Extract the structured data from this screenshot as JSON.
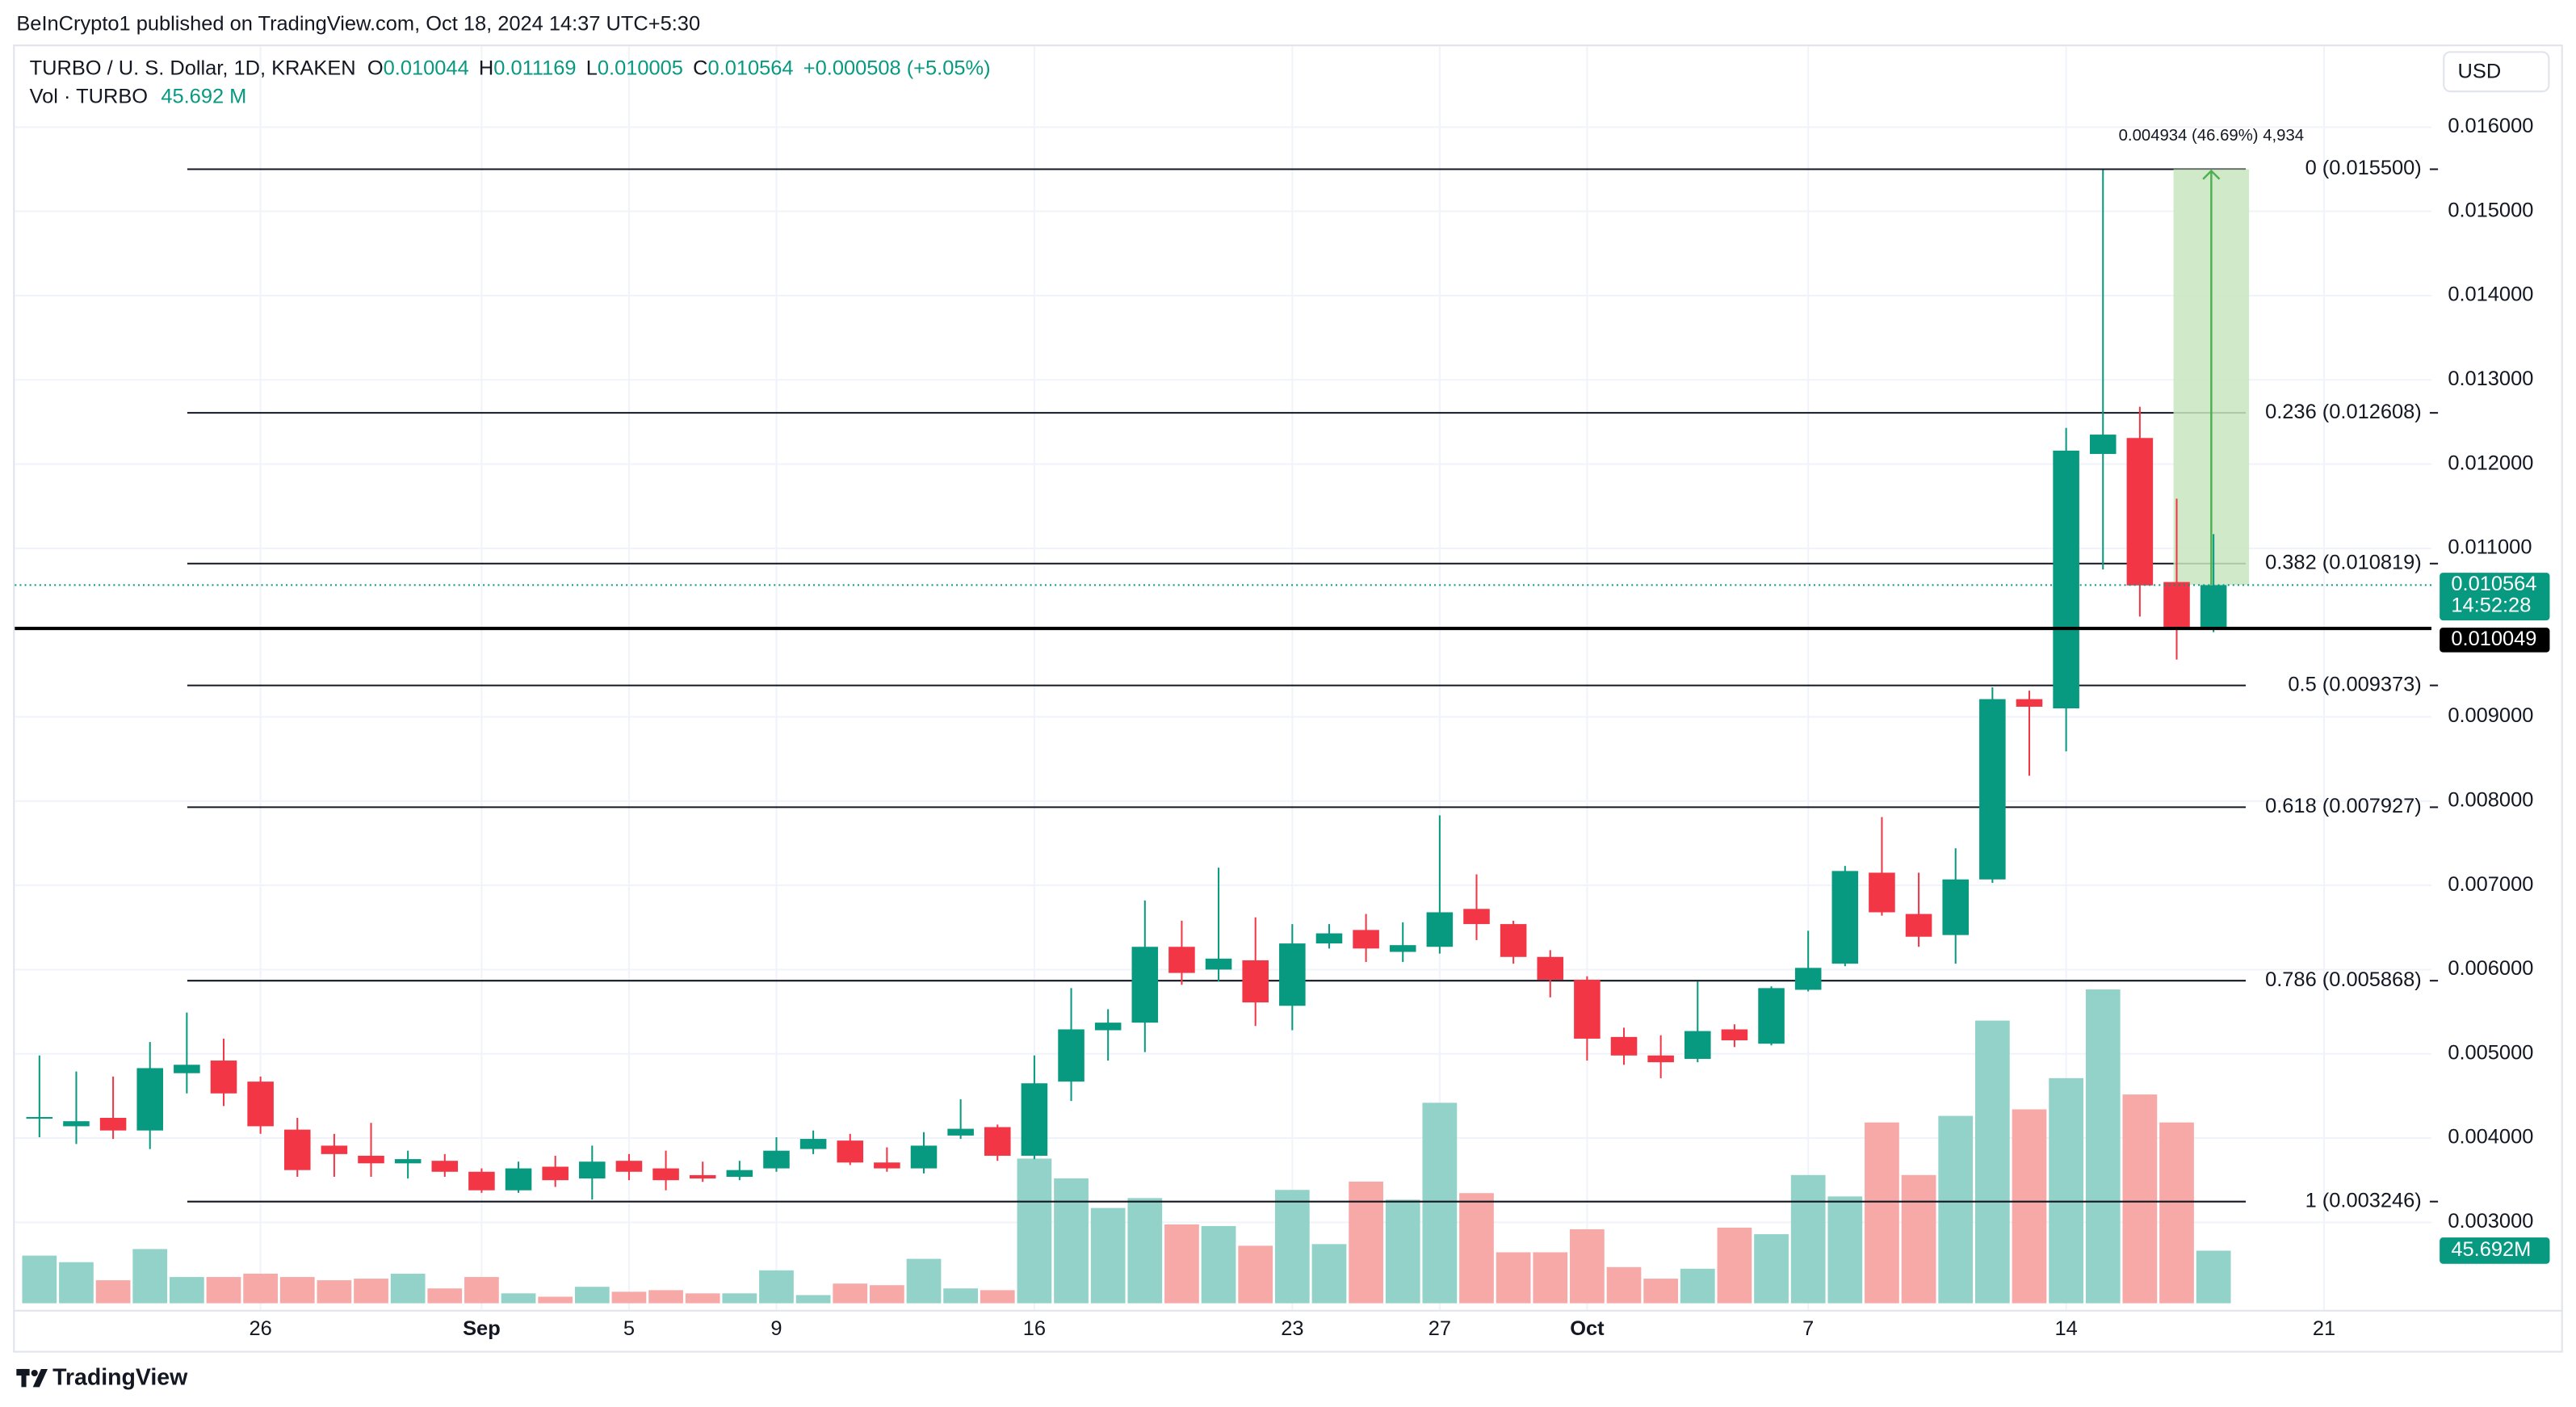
{
  "header": {
    "publisher": "BeInCrypto1 published on TradingView.com, Oct 18, 2024 14:37 UTC+5:30",
    "symbol": "TURBO / U. S. Dollar, 1D, KRAKEN",
    "o_label": "O",
    "o": "0.010044",
    "h_label": "H",
    "h": "0.011169",
    "l_label": "L",
    "l": "0.010005",
    "c_label": "C",
    "c": "0.010564",
    "change": "+0.000508 (+5.05%)",
    "vol_label": "Vol · TURBO",
    "vol": "45.692 M"
  },
  "currency": "USD",
  "brand": "TradingView",
  "chart_data": {
    "type": "candlestick",
    "x": [
      "Aug 20",
      "Aug 21",
      "Aug 22",
      "Aug 23",
      "Aug 24",
      "Aug 25",
      "Aug 26",
      "Aug 27",
      "Aug 28",
      "Aug 29",
      "Aug 30",
      "Aug 31",
      "Sep 1",
      "Sep 2",
      "Sep 3",
      "Sep 4",
      "Sep 5",
      "Sep 6",
      "Sep 7",
      "Sep 8",
      "Sep 9",
      "Sep 10",
      "Sep 11",
      "Sep 12",
      "Sep 13",
      "Sep 14",
      "Sep 15",
      "Sep 16",
      "Sep 17",
      "Sep 18",
      "Sep 19",
      "Sep 20",
      "Sep 21",
      "Sep 22",
      "Sep 23",
      "Sep 24",
      "Sep 25",
      "Sep 26",
      "Sep 27",
      "Sep 28",
      "Sep 29",
      "Sep 30",
      "Oct 1",
      "Oct 2",
      "Oct 3",
      "Oct 4",
      "Oct 5",
      "Oct 6",
      "Oct 7",
      "Oct 8",
      "Oct 9",
      "Oct 10",
      "Oct 11",
      "Oct 12",
      "Oct 13",
      "Oct 14",
      "Oct 15",
      "Oct 16",
      "Oct 17",
      "Oct 18"
    ],
    "open": [
      0.00423,
      0.00414,
      0.00424,
      0.00409,
      0.00477,
      0.00492,
      0.00467,
      0.0041,
      0.00391,
      0.00379,
      0.0037,
      0.00373,
      0.0036,
      0.00338,
      0.00366,
      0.00352,
      0.00373,
      0.00364,
      0.00356,
      0.00354,
      0.00364,
      0.00387,
      0.00397,
      0.00371,
      0.00364,
      0.00403,
      0.00413,
      0.00379,
      0.00467,
      0.00528,
      0.00537,
      0.00627,
      0.006,
      0.00611,
      0.00557,
      0.00631,
      0.00647,
      0.00621,
      0.00627,
      0.00672,
      0.00654,
      0.00615,
      0.00588,
      0.0052,
      0.00498,
      0.00494,
      0.00529,
      0.00512,
      0.00576,
      0.00607,
      0.00715,
      0.00666,
      0.00641,
      0.00707,
      0.00921,
      0.0091,
      0.01212,
      0.01231,
      0.0106,
      0.010044
    ],
    "high": [
      0.00498,
      0.00479,
      0.00473,
      0.00514,
      0.00549,
      0.00518,
      0.00473,
      0.00424,
      0.00405,
      0.00418,
      0.00385,
      0.00381,
      0.00364,
      0.00372,
      0.00379,
      0.00391,
      0.00381,
      0.00385,
      0.00372,
      0.00373,
      0.00401,
      0.00409,
      0.00405,
      0.00389,
      0.00407,
      0.00446,
      0.00416,
      0.00498,
      0.00578,
      0.00553,
      0.00682,
      0.00658,
      0.00721,
      0.00662,
      0.00654,
      0.00654,
      0.00666,
      0.00656,
      0.00783,
      0.00713,
      0.00658,
      0.00623,
      0.00592,
      0.00531,
      0.00522,
      0.00586,
      0.00535,
      0.0058,
      0.00646,
      0.00723,
      0.00781,
      0.00715,
      0.00744,
      0.00935,
      0.00931,
      0.01243,
      0.01549,
      0.01268,
      0.01159,
      0.011169
    ],
    "low": [
      0.00401,
      0.00393,
      0.00399,
      0.00387,
      0.00453,
      0.00438,
      0.00405,
      0.00354,
      0.00354,
      0.00354,
      0.00352,
      0.00354,
      0.00335,
      0.00335,
      0.00342,
      0.00327,
      0.0035,
      0.00338,
      0.00348,
      0.0035,
      0.0036,
      0.00381,
      0.00368,
      0.0036,
      0.00358,
      0.00399,
      0.00373,
      0.00375,
      0.00444,
      0.00492,
      0.00502,
      0.00582,
      0.00586,
      0.00533,
      0.00528,
      0.00625,
      0.00609,
      0.00609,
      0.00619,
      0.00635,
      0.00607,
      0.00567,
      0.00492,
      0.00487,
      0.00471,
      0.0049,
      0.00508,
      0.0051,
      0.00574,
      0.00604,
      0.00664,
      0.00627,
      0.00607,
      0.00703,
      0.0083,
      0.00859,
      0.01075,
      0.01019,
      0.00968,
      0.010005
    ],
    "close": [
      0.00425,
      0.0042,
      0.00409,
      0.00483,
      0.00487,
      0.00453,
      0.00414,
      0.00362,
      0.00381,
      0.0037,
      0.00375,
      0.0036,
      0.00338,
      0.00364,
      0.0035,
      0.00372,
      0.0036,
      0.0035,
      0.00352,
      0.00362,
      0.00385,
      0.00399,
      0.00371,
      0.00364,
      0.00391,
      0.00411,
      0.00379,
      0.00465,
      0.00529,
      0.00537,
      0.00627,
      0.00596,
      0.00613,
      0.00561,
      0.00631,
      0.00643,
      0.00625,
      0.00629,
      0.00668,
      0.00654,
      0.00615,
      0.00588,
      0.00518,
      0.00498,
      0.0049,
      0.00527,
      0.00516,
      0.00578,
      0.00602,
      0.00717,
      0.00668,
      0.00639,
      0.00707,
      0.00921,
      0.00912,
      0.01216,
      0.01235,
      0.01056,
      0.01005,
      0.010564
    ],
    "volume": [
      41.4,
      35.7,
      20.0,
      47.1,
      22.8,
      22.8,
      25.7,
      22.8,
      20.0,
      21.4,
      25.7,
      12.9,
      22.8,
      8.6,
      5.7,
      14.3,
      10.0,
      11.4,
      8.6,
      8.6,
      28.6,
      7.1,
      17.1,
      15.7,
      38.6,
      12.9,
      11.4,
      125.7,
      108.5,
      82.8,
      91.4,
      68.5,
      67.1,
      50.0,
      98.5,
      51.4,
      105.7,
      90.0,
      174.2,
      95.7,
      44.3,
      44.3,
      64.3,
      31.4,
      21.4,
      30.0,
      65.7,
      60.0,
      111.4,
      92.8,
      157.1,
      111.4,
      162.8,
      245.6,
      168.5,
      195.6,
      272.7,
      181.4,
      157.1,
      45.692
    ],
    "up_color": "#089981",
    "down_color": "#f23645",
    "volume_up_color": "#92d2c8",
    "volume_down_color": "#f7a9a7",
    "ylim": [
      0.002,
      0.01696
    ],
    "yticks": [
      {
        "value": 0.003,
        "label": "0.003000"
      },
      {
        "value": 0.004,
        "label": "0.004000"
      },
      {
        "value": 0.005,
        "label": "0.005000"
      },
      {
        "value": 0.006,
        "label": "0.006000"
      },
      {
        "value": 0.007,
        "label": "0.007000"
      },
      {
        "value": 0.008,
        "label": "0.008000"
      },
      {
        "value": 0.009,
        "label": "0.009000"
      },
      {
        "value": 0.011,
        "label": "0.011000"
      },
      {
        "value": 0.012,
        "label": "0.012000"
      },
      {
        "value": 0.013,
        "label": "0.013000"
      },
      {
        "value": 0.014,
        "label": "0.014000"
      },
      {
        "value": 0.015,
        "label": "0.015000"
      },
      {
        "value": 0.016,
        "label": "0.016000"
      }
    ],
    "xticks": [
      {
        "value": "Aug 26",
        "label": "26"
      },
      {
        "value": "Sep 1",
        "label": "Sep"
      },
      {
        "value": "Sep 5",
        "label": "5"
      },
      {
        "value": "Sep 9",
        "label": "9"
      },
      {
        "value": "Sep 16",
        "label": "16"
      },
      {
        "value": "Sep 23",
        "label": "23"
      },
      {
        "value": "Sep 27",
        "label": "27"
      },
      {
        "value": "Oct 1",
        "label": "Oct"
      },
      {
        "value": "Oct 7",
        "label": "7"
      },
      {
        "value": "Oct 14",
        "label": "14"
      },
      {
        "value": "Oct 21",
        "label": "21"
      }
    ],
    "grid": true,
    "fib_levels": [
      {
        "value": 0.0155,
        "label": "0 (0.015500)"
      },
      {
        "value": 0.012608,
        "label": "0.236 (0.012608)"
      },
      {
        "value": 0.010819,
        "label": "0.382 (0.010819)"
      },
      {
        "value": 0.009373,
        "label": "0.5 (0.009373)"
      },
      {
        "value": 0.007927,
        "label": "0.618 (0.007927)"
      },
      {
        "value": 0.005868,
        "label": "0.786 (0.005868)"
      },
      {
        "value": 0.003246,
        "label": "1 (0.003246)"
      }
    ],
    "fib_color": "#131722",
    "horizontal_line": {
      "value": 0.010049,
      "label": "0.010049",
      "color": "#000000"
    },
    "last_price": {
      "value": 0.010564,
      "label": "0.010564",
      "countdown": "14:52:28"
    },
    "volume_label": "45.692M",
    "measure": {
      "from": 0.010566,
      "to": 0.0155,
      "label": "0.004934 (46.69%) 4,934",
      "color": "#c8e6c0",
      "arrow_color": "#4caf50"
    }
  }
}
